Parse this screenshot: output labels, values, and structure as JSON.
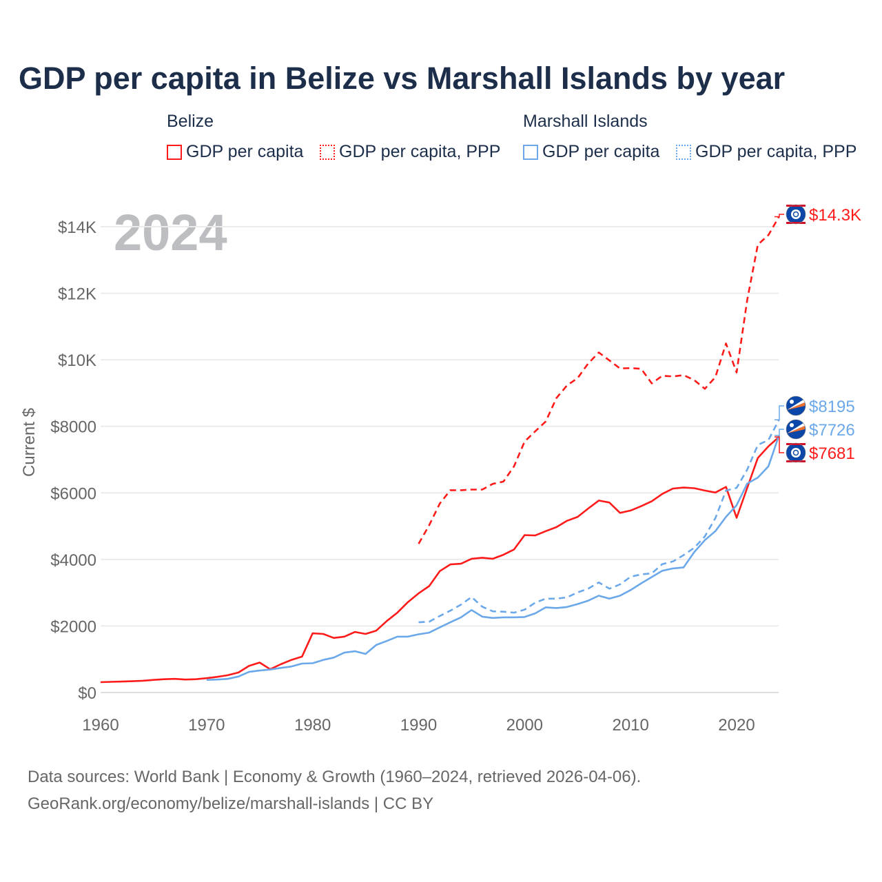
{
  "chart_data": {
    "type": "line",
    "title": "GDP per capita in Belize vs Marshall Islands by year",
    "ylabel": "Current $",
    "xlabel": "",
    "year_watermark": "2024",
    "xlim": [
      1960,
      2024
    ],
    "ylim": [
      0,
      14500
    ],
    "x_ticks": [
      1960,
      1970,
      1980,
      1990,
      2000,
      2010,
      2020
    ],
    "x_tick_labels": [
      "1960",
      "1970",
      "1980",
      "1990",
      "2000",
      "2010",
      "2020"
    ],
    "y_ticks": [
      0,
      2000,
      4000,
      6000,
      8000,
      10000,
      12000,
      14000
    ],
    "y_tick_labels": [
      "$0",
      "$2000",
      "$4000",
      "$6000",
      "$8000",
      "$10K",
      "$12K",
      "$14K"
    ],
    "grid": true,
    "legend_groups": [
      {
        "name": "Belize",
        "items": [
          "GDP per capita",
          "GDP per capita, PPP"
        ]
      },
      {
        "name": "Marshall Islands",
        "items": [
          "GDP per capita",
          "GDP per capita, PPP"
        ]
      }
    ],
    "series": [
      {
        "name": "Belize GDP per capita",
        "color": "#ff1a1a",
        "dashed": false,
        "start": 1960,
        "values": [
          310,
          320,
          330,
          340,
          355,
          380,
          400,
          410,
          390,
          400,
          430,
          470,
          520,
          600,
          800,
          900,
          700,
          850,
          980,
          1080,
          1780,
          1760,
          1640,
          1680,
          1820,
          1760,
          1860,
          2150,
          2400,
          2720,
          2980,
          3200,
          3650,
          3850,
          3870,
          4020,
          4050,
          4020,
          4140,
          4300,
          4730,
          4720,
          4850,
          4970,
          5160,
          5280,
          5530,
          5770,
          5710,
          5400,
          5470,
          5600,
          5750,
          5970,
          6130,
          6160,
          6140,
          6070,
          6010,
          6180,
          5250,
          6150,
          7050,
          7400,
          7681
        ],
        "end_label": "$7681"
      },
      {
        "name": "Belize GDP per capita, PPP",
        "color": "#ff1a1a",
        "dashed": true,
        "start": 1990,
        "values": [
          4470,
          5030,
          5680,
          6080,
          6080,
          6100,
          6100,
          6270,
          6340,
          6800,
          7540,
          7850,
          8150,
          8850,
          9230,
          9450,
          9890,
          10220,
          9980,
          9740,
          9750,
          9730,
          9290,
          9520,
          9500,
          9540,
          9390,
          9130,
          9480,
          10490,
          9620,
          11800,
          13460,
          13750,
          14300
        ],
        "end_label": "$14.3K"
      },
      {
        "name": "Marshall Islands GDP per capita",
        "color": "#6aa8ea",
        "dashed": false,
        "start": 1970,
        "values": [
          380,
          390,
          410,
          480,
          620,
          660,
          690,
          740,
          780,
          870,
          880,
          980,
          1050,
          1200,
          1240,
          1160,
          1430,
          1550,
          1680,
          1680,
          1750,
          1800,
          1960,
          2110,
          2260,
          2480,
          2280,
          2240,
          2260,
          2260,
          2270,
          2380,
          2560,
          2540,
          2570,
          2660,
          2760,
          2910,
          2820,
          2910,
          3080,
          3280,
          3470,
          3660,
          3730,
          3760,
          4220,
          4580,
          4850,
          5280,
          5630,
          6280,
          6460,
          6800,
          7726
        ],
        "end_label": "$7726"
      },
      {
        "name": "Marshall Islands GDP per capita, PPP",
        "color": "#6aa8ea",
        "dashed": true,
        "start": 1990,
        "values": [
          2110,
          2130,
          2300,
          2460,
          2640,
          2870,
          2580,
          2440,
          2430,
          2400,
          2490,
          2700,
          2820,
          2820,
          2860,
          3010,
          3120,
          3310,
          3120,
          3250,
          3480,
          3550,
          3580,
          3860,
          3940,
          4130,
          4350,
          4690,
          5240,
          6070,
          6150,
          6700,
          7440,
          7590,
          8195
        ],
        "end_label": "$8195"
      }
    ]
  },
  "source_line1": "Data sources: World Bank | Economy & Growth (1960–2024, retrieved 2026-04-06).",
  "source_line2": "GeoRank.org/economy/belize/marshall-islands | CC BY"
}
